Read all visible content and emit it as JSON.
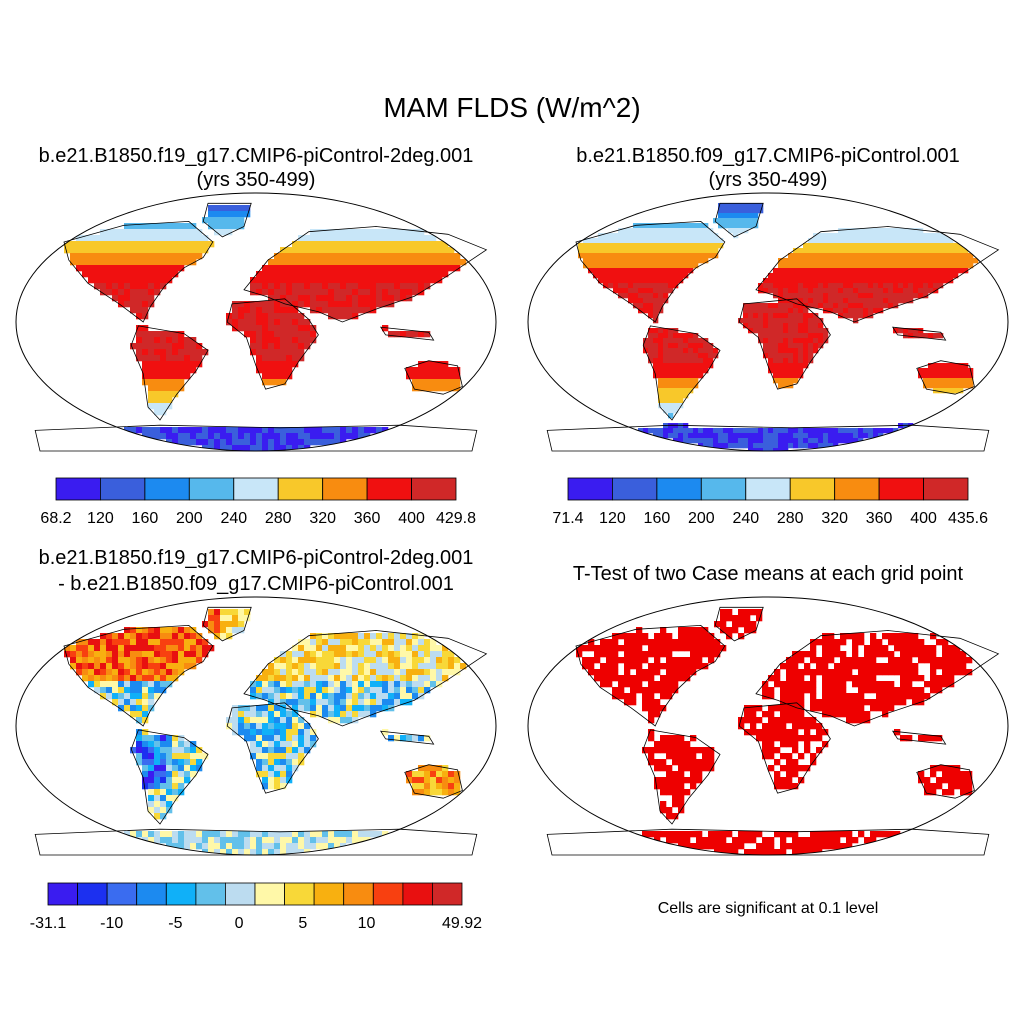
{
  "figure": {
    "title": "MAM FLDS (W/m^2)"
  },
  "panels": {
    "case1": {
      "title_line1": "b.e21.B1850.f19_g17.CMIP6-piControl-2deg.001",
      "title_line2": "(yrs 350-499)"
    },
    "case2": {
      "title_line1": "b.e21.B1850.f09_g17.CMIP6-piControl.001",
      "title_line2": "(yrs 350-499)"
    },
    "diff": {
      "title_line1": "b.e21.B1850.f19_g17.CMIP6-piControl-2deg.001",
      "title_line2": "- b.e21.B1850.f09_g17.CMIP6-piControl.001"
    },
    "ttest": {
      "title_line1": "T-Test of two Case means at each grid point",
      "note": "Cells are significant at 0.1 level"
    }
  },
  "colorbars": {
    "case1": {
      "labels": [
        "68.2",
        "120",
        "160",
        "200",
        "240",
        "280",
        "320",
        "360",
        "400",
        "429.8"
      ],
      "colors": [
        "#3a1cf0",
        "#3a5fdc",
        "#1c8af0",
        "#56b8ec",
        "#c8e6f8",
        "#f8c82a",
        "#f88c10",
        "#f01010",
        "#d02828"
      ]
    },
    "case2": {
      "labels": [
        "71.4",
        "120",
        "160",
        "200",
        "240",
        "280",
        "320",
        "360",
        "400",
        "435.6"
      ],
      "colors": [
        "#3a1cf0",
        "#3a5fdc",
        "#1c8af0",
        "#56b8ec",
        "#c8e6f8",
        "#f8c82a",
        "#f88c10",
        "#f01010",
        "#d02828"
      ]
    },
    "diff": {
      "labels": [
        "-31.1",
        "",
        "-10",
        "",
        "-5",
        "",
        "0",
        "",
        "5",
        "",
        "10",
        "",
        "",
        "49.92"
      ],
      "colors": [
        "#3a1cf0",
        "#1c30f0",
        "#3a6cf0",
        "#1c8af0",
        "#10b0f8",
        "#62c0ea",
        "#bcdcf0",
        "#fff8a8",
        "#f8d838",
        "#f8b010",
        "#f88c10",
        "#f84010",
        "#e81010",
        "#d02828"
      ]
    }
  },
  "map_colors": {
    "ocean": "#ffffff",
    "coast": "#000000",
    "significant": "#ee0000"
  }
}
